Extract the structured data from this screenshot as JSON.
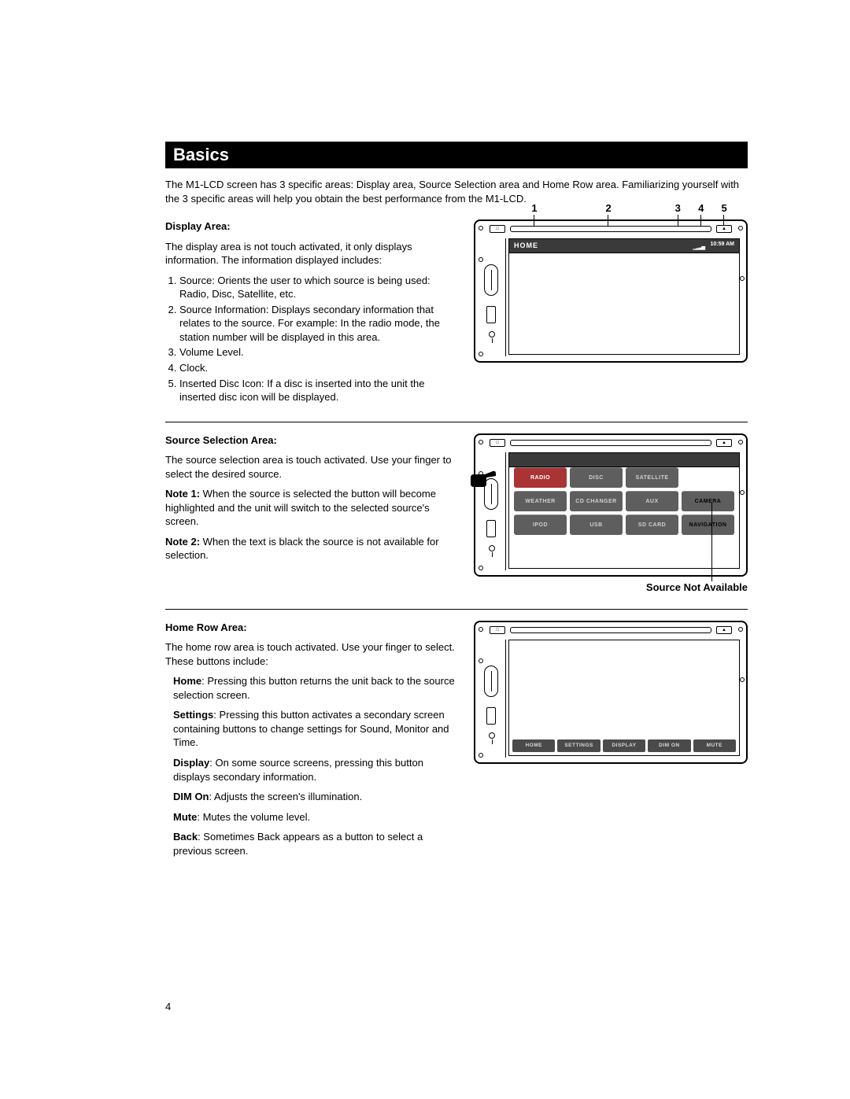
{
  "page_number": "4",
  "title": "Basics",
  "intro": "The M1-LCD screen has 3 specific areas: Display area, Source Selection area and Home Row area. Familiarizing yourself with the 3 specific areas will help you obtain the best performance from the M1-LCD.",
  "display_area": {
    "heading": "Display Area:",
    "lead": "The display area is not touch activated, it only displays information. The information displayed includes:",
    "items": [
      "Source: Orients the user to which source is being used: Radio, Disc, Satellite, etc.",
      "Source Information: Displays secondary information that relates to the source. For example: In the radio mode, the station number will be displayed in this area.",
      "Volume Level.",
      "Clock.",
      "Inserted Disc Icon: If a disc is inserted into the unit the inserted disc icon will be displayed."
    ],
    "callouts": [
      "1",
      "2",
      "3",
      "4",
      "5"
    ],
    "callout_positions_pct": [
      10,
      42,
      72,
      82,
      92
    ],
    "screen_label": "HOME",
    "clock": "10:59 AM"
  },
  "source_area": {
    "heading": "Source Selection Area:",
    "p1": "The source selection area is touch activated. Use your finger to select the desired source.",
    "note1_label": "Note 1:",
    "note1": " When the source is selected the button will become highlighted and the unit will switch to the selected source's screen.",
    "note2_label": "Note 2:",
    "note2": " When the text is black the source is not available for selection.",
    "caption": "Source Not Available",
    "buttons": [
      {
        "label": "RADIO",
        "state": "sel"
      },
      {
        "label": "DISC",
        "state": ""
      },
      {
        "label": "SATELLITE",
        "state": ""
      },
      {
        "label": "WEATHER",
        "state": ""
      },
      {
        "label": "CD CHANGER",
        "state": ""
      },
      {
        "label": "AUX",
        "state": ""
      },
      {
        "label": "CAMERA",
        "state": "na"
      },
      {
        "label": "IPOD",
        "state": ""
      },
      {
        "label": "USB",
        "state": ""
      },
      {
        "label": "SD CARD",
        "state": ""
      },
      {
        "label": "NAVIGATION",
        "state": "na"
      }
    ]
  },
  "home_row": {
    "heading": "Home Row Area:",
    "lead": "The home row area is touch activated. Use your finger to select. These buttons include:",
    "items": [
      {
        "b": "Home",
        "t": ": Pressing this button returns the unit back to the source selection screen."
      },
      {
        "b": "Settings",
        "t": ": Pressing this button activates a secondary screen containing buttons to change settings for Sound, Monitor and Time."
      },
      {
        "b": "Display",
        "t": ": On some source screens, pressing this button displays secondary information."
      },
      {
        "b": "DIM On",
        "t": ": Adjusts the screen's illumination."
      },
      {
        "b": "Mute",
        "t": ": Mutes the volume level."
      },
      {
        "b": "Back",
        "t": ": Sometimes Back appears as a button to select a previous screen."
      }
    ],
    "buttons": [
      "HOME",
      "SETTINGS",
      "DISPLAY",
      "DIM ON",
      "MUTE"
    ]
  },
  "colors": {
    "title_bg": "#000000",
    "title_fg": "#ffffff",
    "btn_bg": "#5e5e5e",
    "btn_fg": "#cfcfcf",
    "btn_sel_bg": "#a33333",
    "btn_na_fg": "#000000",
    "topbar_bg": "#3a3a3a"
  }
}
